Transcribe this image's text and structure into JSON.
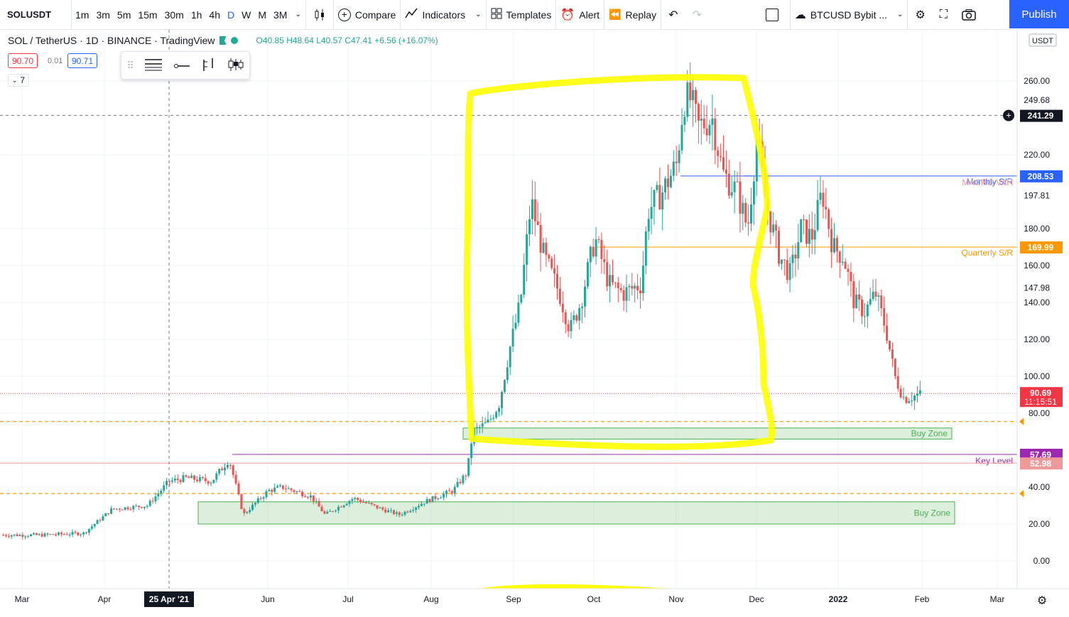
{
  "toolbar": {
    "symbol": "SOLUSDT",
    "intervals": [
      "1m",
      "3m",
      "5m",
      "15m",
      "30m",
      "1h",
      "4h",
      "D",
      "W",
      "M",
      "3M"
    ],
    "active_interval": "D",
    "compare_label": "Compare",
    "indicators_label": "Indicators",
    "templates_label": "Templates",
    "alert_label": "Alert",
    "replay_label": "Replay",
    "symbol_select": "BTCUSD Bybit ...",
    "publish_label": "Publish"
  },
  "legend": {
    "title": "SOL / TetherUS · 1D · BINANCE · TradingView",
    "ohlc": "O40.85 H48.64 L40.57 C47.41 +6.56 (+16.07%)",
    "bid": "90.70",
    "spread": "0.01",
    "ask": "90.71",
    "collapse_count": "7"
  },
  "price_axis": {
    "currency": "USDT",
    "ticks": [
      "260.00",
      "249.68",
      "220.00",
      "197.81",
      "180.00",
      "160.00",
      "147.98",
      "140.00",
      "120.00",
      "100.00",
      "80.00",
      "40.00",
      "20.00",
      "0.00"
    ],
    "labels": [
      {
        "text": "241.29",
        "value": 241.29,
        "color": "#131722"
      },
      {
        "text": "208.53",
        "value": 208.53,
        "color": "#2962ff"
      },
      {
        "text": "169.99",
        "value": 169.99,
        "color": "#ff9800"
      },
      {
        "text": "90.69",
        "sub": "11:15:51",
        "value": 90.69,
        "color": "#f23645"
      },
      {
        "text": "57.69",
        "value": 57.69,
        "color": "#9c27b0"
      },
      {
        "text": "52.98",
        "value": 52.98,
        "color": "#ef9a9a"
      }
    ]
  },
  "time_axis": {
    "ticks": [
      "Mar",
      "Apr",
      "Jun",
      "Jul",
      "Aug",
      "Sep",
      "Oct",
      "Nov",
      "Dec",
      "2022",
      "Feb",
      "Mar"
    ],
    "crosshair_label": "25 Apr '21"
  },
  "levels": [
    {
      "name": "Monthly S/R",
      "value": 208.53,
      "color": "#2962ff"
    },
    {
      "name": "Quarterly S/R",
      "value": 169.99,
      "color": "#ff9800"
    },
    {
      "name": "Key Level",
      "value": 57.69,
      "color": "#9c27b0"
    },
    {
      "name": "MACRO VAH",
      "value": 52.98,
      "color": "#ef9a9a"
    }
  ],
  "zones": [
    {
      "name": "Buy Zone",
      "low": 66,
      "high": 72
    },
    {
      "name": "Buy Zone",
      "low": 20,
      "high": 32
    }
  ],
  "colors": {
    "up": "#26a69a",
    "down": "#ef5350",
    "highlight": "#ffff00",
    "accent": "#2962ff"
  }
}
